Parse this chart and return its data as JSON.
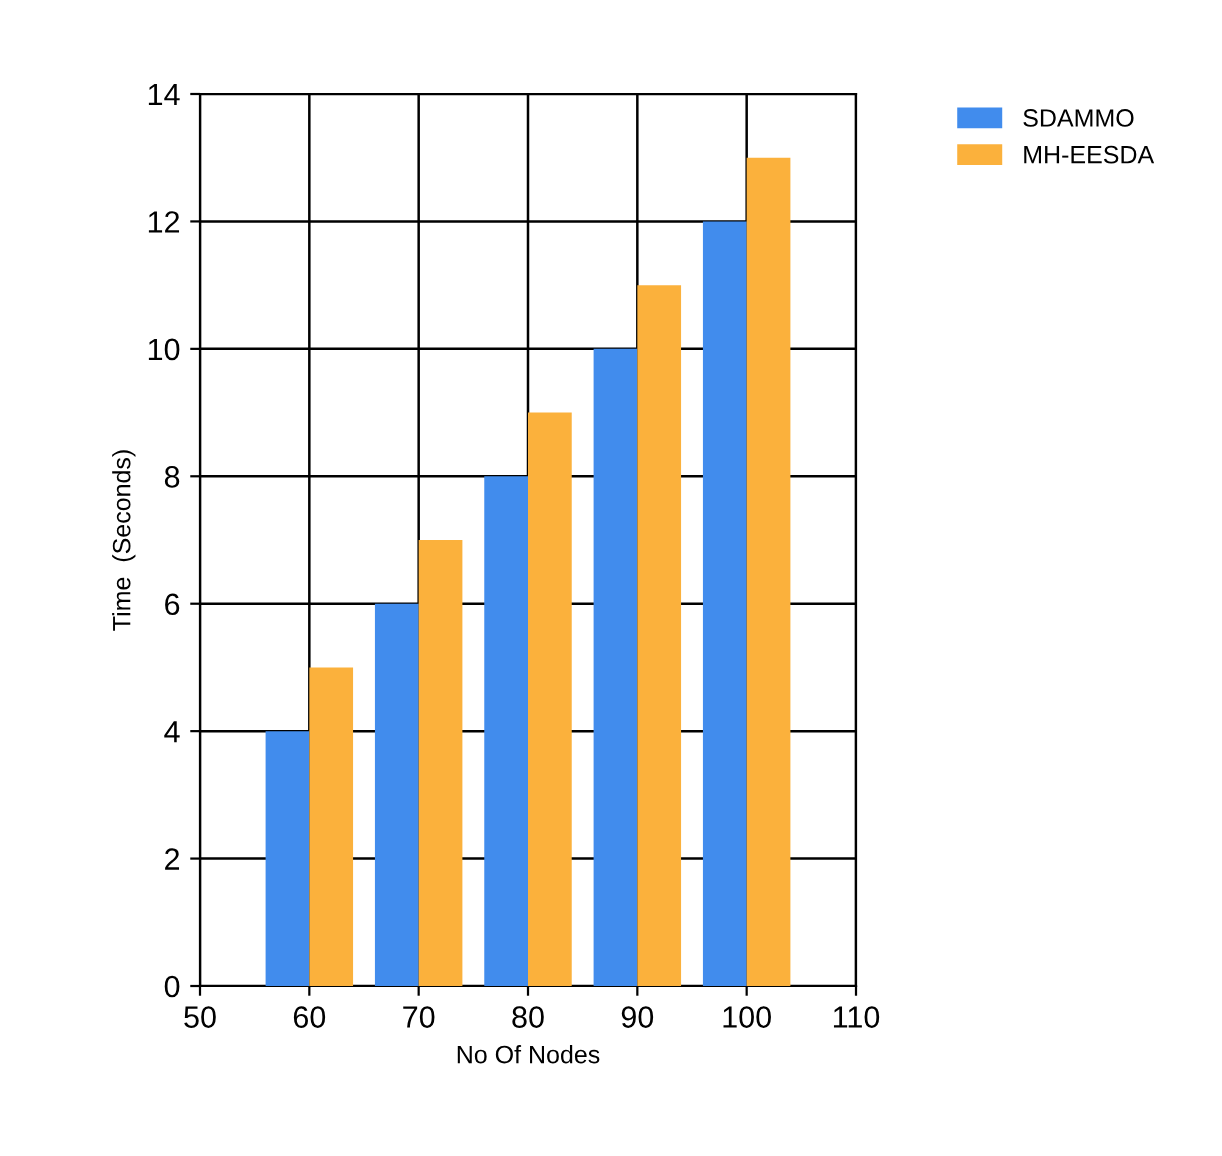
{
  "chart_data": {
    "type": "bar",
    "xlabel": "No Of Nodes",
    "ylabel": "Time  (Seconds)",
    "x": [
      60,
      70,
      80,
      90,
      100
    ],
    "series": [
      {
        "name": "SDAMMO",
        "color": "#418ced",
        "values": [
          4,
          6,
          8,
          10,
          12
        ]
      },
      {
        "name": "MH-EESDA",
        "color": "#fbb13c",
        "values": [
          5,
          7,
          9,
          11,
          13
        ]
      }
    ],
    "xlim": [
      50,
      110
    ],
    "xticks": [
      50,
      60,
      70,
      80,
      90,
      100,
      110
    ],
    "ylim": [
      0,
      14
    ],
    "yticks": [
      0,
      2,
      4,
      6,
      8,
      10,
      12,
      14
    ],
    "grid": true,
    "legend": "top right"
  }
}
